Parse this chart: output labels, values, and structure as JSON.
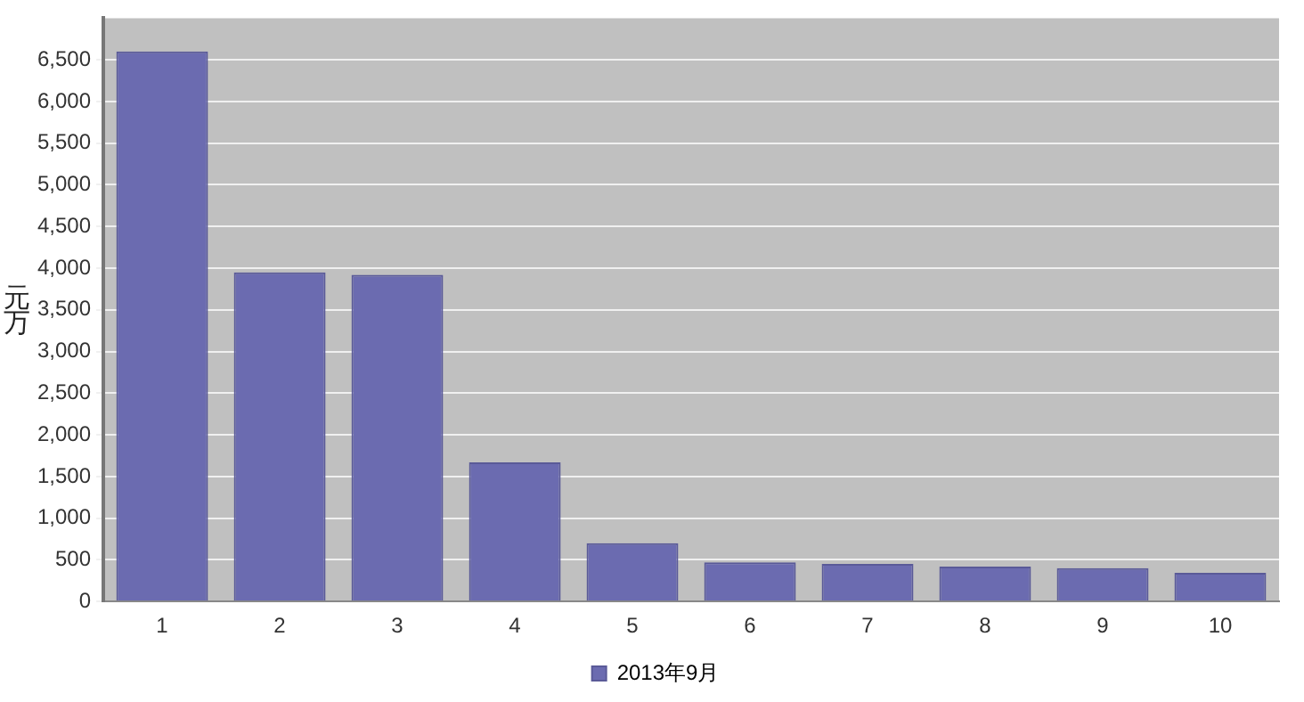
{
  "chart_data": {
    "type": "bar",
    "ylabel": "元万",
    "categories": [
      "1",
      "2",
      "3",
      "4",
      "5",
      "6",
      "7",
      "8",
      "9",
      "10"
    ],
    "series": [
      {
        "name": "2013年9月",
        "color": "#6b6bb0",
        "values": [
          6600,
          3950,
          3920,
          1670,
          700,
          470,
          450,
          420,
          400,
          345
        ]
      }
    ],
    "ylim": [
      0,
      7000
    ],
    "yticks": [
      {
        "value": 0,
        "label": "0"
      },
      {
        "value": 500,
        "label": "500"
      },
      {
        "value": 1000,
        "label": "1,000"
      },
      {
        "value": 1500,
        "label": "1,500"
      },
      {
        "value": 2000,
        "label": "2,000"
      },
      {
        "value": 2500,
        "label": "2,500"
      },
      {
        "value": 3000,
        "label": "3,000"
      },
      {
        "value": 3500,
        "label": "3,500"
      },
      {
        "value": 4000,
        "label": "4,000"
      },
      {
        "value": 4500,
        "label": "4,500"
      },
      {
        "value": 5000,
        "label": "5,000"
      },
      {
        "value": 5500,
        "label": "5,500"
      },
      {
        "value": 6000,
        "label": "6,000"
      },
      {
        "value": 6500,
        "label": "6,500"
      }
    ],
    "grid": "y",
    "legend": "bottom"
  }
}
